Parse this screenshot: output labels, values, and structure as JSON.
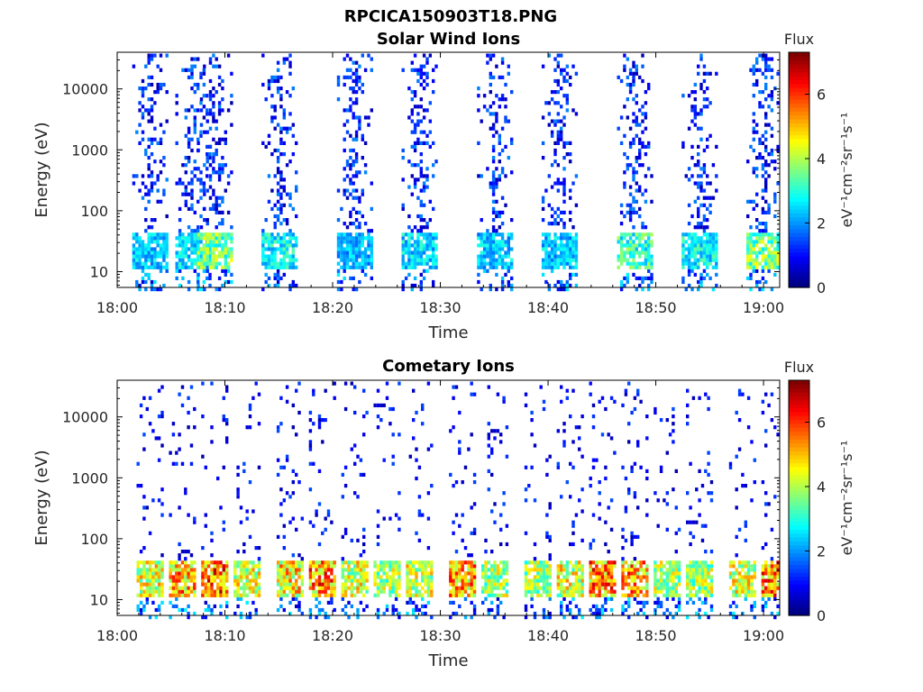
{
  "title": "RPCICA150903T18.PNG",
  "colorbar": {
    "label": "Flux",
    "unit_text": "eV⁻¹cm⁻²sr⁻¹s⁻¹",
    "ticks": [
      "0",
      "2",
      "4",
      "6"
    ],
    "range": [
      0,
      7.3
    ],
    "colormap": "jet"
  },
  "chart_data": [
    {
      "type": "heatmap",
      "title": "Solar Wind Ions",
      "xlabel": "Time",
      "ylabel": "Energy (eV)",
      "x_ticks": [
        "18:00",
        "18:10",
        "18:20",
        "18:30",
        "18:40",
        "18:50",
        "19:00"
      ],
      "y_ticks": [
        "10",
        "100",
        "1000",
        "10000"
      ],
      "y_scale": "log",
      "ylim": [
        5.5,
        40000
      ],
      "xlim": [
        "18:00",
        "19:01:30"
      ],
      "clim": [
        0,
        7.3
      ],
      "sweeps": [
        {
          "time": "18:03",
          "max_flux": 3.0
        },
        {
          "time": "18:07",
          "max_flux": 3.2
        },
        {
          "time": "18:09",
          "max_flux": 4.6
        },
        {
          "time": "18:15",
          "max_flux": 3.5
        },
        {
          "time": "18:22",
          "max_flux": 2.8
        },
        {
          "time": "18:28",
          "max_flux": 3.2
        },
        {
          "time": "18:35",
          "max_flux": 3.0
        },
        {
          "time": "18:41",
          "max_flux": 3.0
        },
        {
          "time": "18:48",
          "max_flux": 4.0
        },
        {
          "time": "18:54",
          "max_flux": 3.5
        },
        {
          "time": "19:00",
          "max_flux": 4.6
        }
      ]
    },
    {
      "type": "heatmap",
      "title": "Cometary Ions",
      "xlabel": "Time",
      "ylabel": "Energy (eV)",
      "x_ticks": [
        "18:00",
        "18:10",
        "18:20",
        "18:30",
        "18:40",
        "18:50",
        "19:00"
      ],
      "y_ticks": [
        "10",
        "100",
        "1000",
        "10000"
      ],
      "y_scale": "log",
      "ylim": [
        5.5,
        40000
      ],
      "xlim": [
        "18:00",
        "19:01:30"
      ],
      "clim": [
        0,
        7.3
      ],
      "sweeps": [
        {
          "time": "18:03",
          "max_flux": 5.5
        },
        {
          "time": "18:06",
          "max_flux": 6.5
        },
        {
          "time": "18:09",
          "max_flux": 7.0
        },
        {
          "time": "18:12",
          "max_flux": 5.5
        },
        {
          "time": "18:16",
          "max_flux": 6.0
        },
        {
          "time": "18:19",
          "max_flux": 6.8
        },
        {
          "time": "18:22",
          "max_flux": 5.5
        },
        {
          "time": "18:25",
          "max_flux": 5.0
        },
        {
          "time": "18:28",
          "max_flux": 5.5
        },
        {
          "time": "18:32",
          "max_flux": 6.5
        },
        {
          "time": "18:35",
          "max_flux": 5.0
        },
        {
          "time": "18:39",
          "max_flux": 5.0
        },
        {
          "time": "18:42",
          "max_flux": 5.5
        },
        {
          "time": "18:45",
          "max_flux": 6.8
        },
        {
          "time": "18:48",
          "max_flux": 6.5
        },
        {
          "time": "18:51",
          "max_flux": 5.0
        },
        {
          "time": "18:54",
          "max_flux": 5.0
        },
        {
          "time": "18:58",
          "max_flux": 5.5
        },
        {
          "time": "19:01",
          "max_flux": 6.8
        }
      ]
    }
  ]
}
